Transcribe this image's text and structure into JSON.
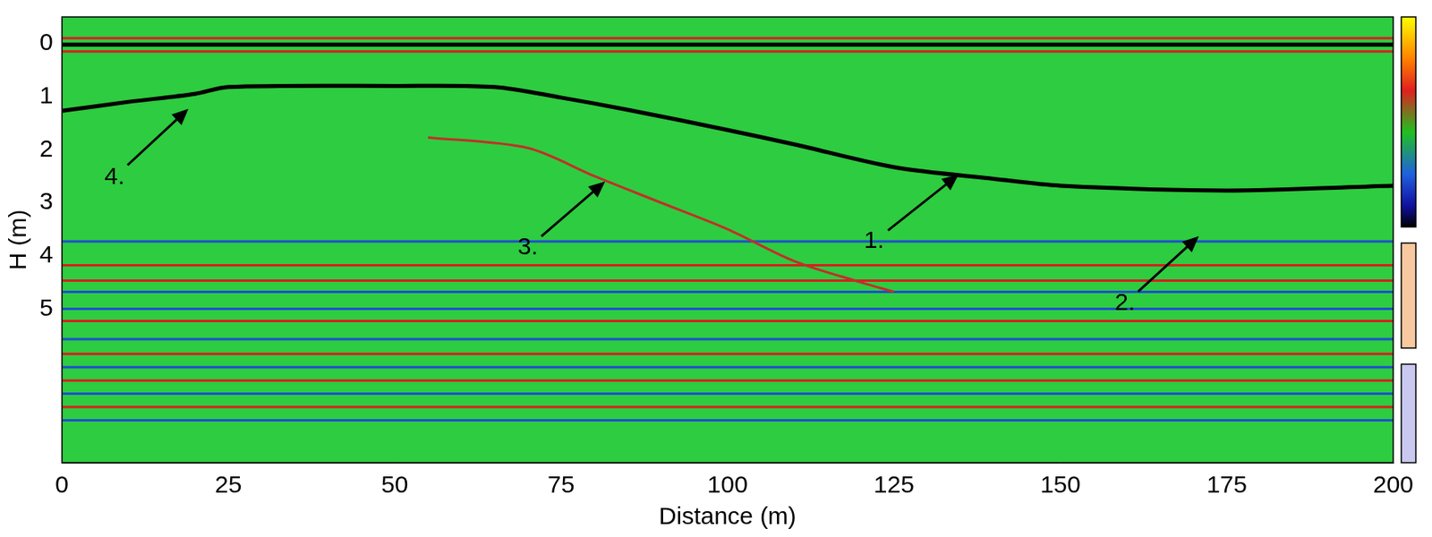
{
  "chart_data": {
    "type": "line",
    "x_label": "Distance (m)",
    "y_label": "H (m)",
    "xlim": [
      0,
      200
    ],
    "xticks": [
      0,
      25,
      50,
      75,
      100,
      125,
      150,
      175,
      200
    ],
    "ylim": [
      7.9,
      -0.5
    ],
    "yticks": [
      0,
      1,
      2,
      3,
      4,
      5
    ],
    "grid": false,
    "series": [
      {
        "x": [
          0,
          200
        ],
        "values": [
          -0.1,
          -0.1
        ],
        "color": "#d62020",
        "line_style": "solid"
      },
      {
        "x": [
          0,
          200
        ],
        "values": [
          0.02,
          0.02
        ],
        "color": "#000000",
        "line_style": "solid"
      },
      {
        "x": [
          0,
          200
        ],
        "values": [
          0.15,
          0.15
        ],
        "color": "#d62020",
        "line_style": "solid"
      },
      {
        "x": [
          0,
          10,
          20,
          25,
          50,
          65,
          75,
          85,
          100,
          110,
          125,
          140,
          150,
          175,
          200
        ],
        "values": [
          1.27,
          1.1,
          0.95,
          0.82,
          0.8,
          0.82,
          1.02,
          1.25,
          1.63,
          1.9,
          2.33,
          2.55,
          2.68,
          2.77,
          2.68
        ],
        "color": "#000000",
        "line_style": "solid"
      },
      {
        "x": [
          55,
          70,
          80,
          90,
          100,
          110,
          120,
          125
        ],
        "values": [
          1.77,
          1.97,
          2.5,
          3.0,
          3.5,
          4.1,
          4.5,
          4.68
        ],
        "color": "#c0302a",
        "line_style": "solid"
      },
      {
        "x": [
          0,
          200
        ],
        "values": [
          3.73,
          3.73
        ],
        "color": "#1f4fd0",
        "line_style": "solid"
      },
      {
        "x": [
          0,
          200
        ],
        "values": [
          4.18,
          4.18
        ],
        "color": "#d62020",
        "line_style": "solid"
      },
      {
        "x": [
          0,
          200
        ],
        "values": [
          4.47,
          4.47
        ],
        "color": "#d62020",
        "line_style": "solid"
      },
      {
        "x": [
          0,
          200
        ],
        "values": [
          4.68,
          4.68
        ],
        "color": "#1f4fd0",
        "line_style": "solid"
      },
      {
        "x": [
          0,
          200
        ],
        "values": [
          5.0,
          5.0
        ],
        "color": "#1f4fd0",
        "line_style": "solid"
      },
      {
        "x": [
          0,
          200
        ],
        "values": [
          5.23,
          5.23
        ],
        "color": "#d62020",
        "line_style": "solid"
      },
      {
        "x": [
          0,
          200
        ],
        "values": [
          5.57,
          5.57
        ],
        "color": "#1f4fd0",
        "line_style": "solid"
      },
      {
        "x": [
          0,
          200
        ],
        "values": [
          5.85,
          5.85
        ],
        "color": "#d62020",
        "line_style": "solid"
      },
      {
        "x": [
          0,
          200
        ],
        "values": [
          6.1,
          6.1
        ],
        "color": "#1f4fd0",
        "line_style": "solid"
      },
      {
        "x": [
          0,
          200
        ],
        "values": [
          6.35,
          6.35
        ],
        "color": "#d62020",
        "line_style": "solid"
      },
      {
        "x": [
          0,
          200
        ],
        "values": [
          6.6,
          6.6
        ],
        "color": "#1f4fd0",
        "line_style": "solid"
      },
      {
        "x": [
          0,
          200
        ],
        "values": [
          6.85,
          6.85
        ],
        "color": "#d62020",
        "line_style": "solid"
      },
      {
        "x": [
          0,
          200
        ],
        "values": [
          7.1,
          7.1
        ],
        "color": "#1f4fd0",
        "line_style": "solid"
      }
    ],
    "annotations": [
      {
        "text": "1.",
        "x": 122,
        "y": 3.73,
        "arrow_x": 134.7,
        "arrow_y": 2.47
      },
      {
        "text": "2.",
        "x": 159.7,
        "y": 4.9,
        "arrow_x": 170.8,
        "arrow_y": 3.63
      },
      {
        "text": "3.",
        "x": 70,
        "y": 3.85,
        "arrow_x": 81.6,
        "arrow_y": 2.6
      },
      {
        "text": "4.",
        "x": 7.9,
        "y": 2.52,
        "arrow_x": 19,
        "arrow_y": 1.23
      }
    ]
  }
}
